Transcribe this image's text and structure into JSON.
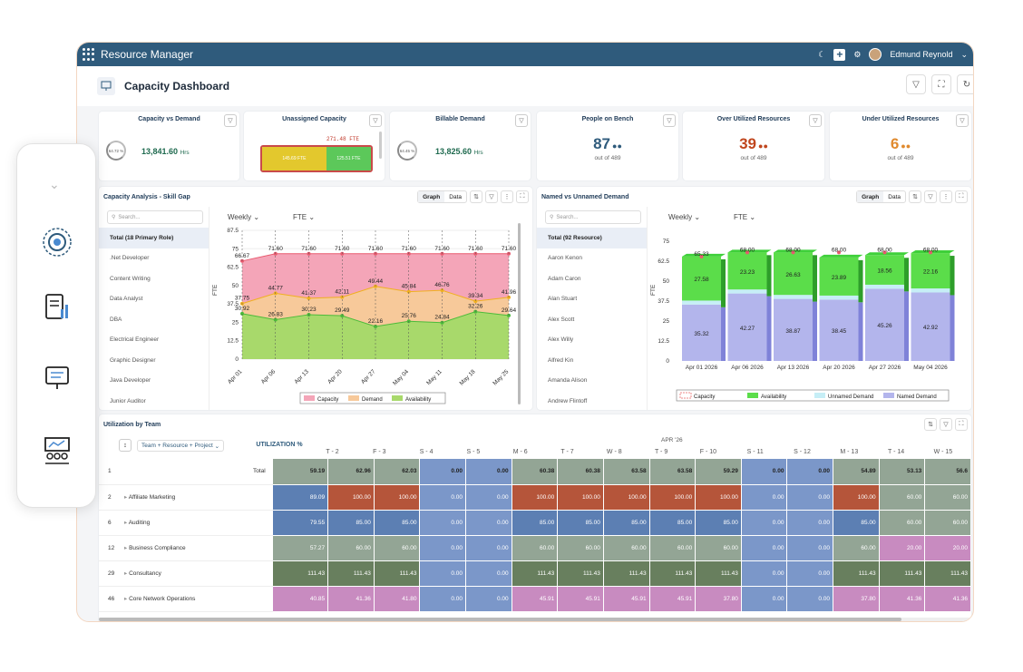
{
  "app": {
    "title": "Resource Manager",
    "user": "Edmund Reynold"
  },
  "page": {
    "title": "Capacity Dashboard"
  },
  "cards": [
    {
      "title": "Capacity vs Demand",
      "ring": "64.72 %",
      "value": "13,841.60",
      "unit": "Hrs"
    },
    {
      "title": "Unassigned Capacity",
      "total": "271.48 FTE",
      "seg1": "145.69 FTE",
      "seg2": "125.51 FTE"
    },
    {
      "title": "Billable Demand",
      "ring": "64.45 %",
      "value": "13,825.60",
      "unit": "Hrs"
    },
    {
      "title": "People on Bench",
      "value": "87",
      "sub": "out of 489"
    },
    {
      "title": "Over Utilized Resources",
      "value": "39",
      "sub": "out of 489"
    },
    {
      "title": "Under Utilized Resources",
      "value": "6",
      "sub": "out of 489"
    }
  ],
  "colors": {
    "topbar": "#2f5b7c",
    "capacity": "#f4a5b8",
    "demand": "#f7c99a",
    "availability": "#a8d96b",
    "named": "#b3b5ec",
    "unnamed": "#c6eef6",
    "avail_bar": "#5bdd4a"
  },
  "left_panel": {
    "title": "Capacity Analysis - Skill Gap",
    "graph_tab": "Graph",
    "data_tab": "Data",
    "search_placeholder": "Search...",
    "period": "Weekly",
    "unit": "FTE",
    "items": [
      "Total (18 Primary Role)",
      ".Net Developer",
      "Content Writing",
      "Data Analyst",
      "DBA",
      "Electrical Engineer",
      "Graphic Designer",
      "Java Developer",
      "Junior Auditor"
    ]
  },
  "right_panel": {
    "title": "Named vs Unnamed Demand",
    "graph_tab": "Graph",
    "data_tab": "Data",
    "search_placeholder": "Search...",
    "period": "Weekly",
    "unit": "FTE",
    "items": [
      "Total (92 Resource)",
      "Aaron Kenon",
      "Adam Caron",
      "Alan Stuart",
      "Alex Scott",
      "Alex Willy",
      "Alfred Kin",
      "Amanda Alison",
      "Andrew Flintoff"
    ]
  },
  "chart_data": [
    {
      "type": "area",
      "ylabel": "FTE",
      "ylim": [
        0,
        87.5
      ],
      "yticks": [
        "87.5",
        "75",
        "62.5",
        "50",
        "37.5",
        "25",
        "12.5",
        "0"
      ],
      "categories": [
        "Apr 01",
        "Apr 06",
        "Apr 13",
        "Apr 20",
        "Apr 27",
        "May 04",
        "May 11",
        "May 18",
        "May 25"
      ],
      "series": [
        {
          "name": "Capacity",
          "values": [
            66.67,
            71.6,
            71.6,
            71.6,
            71.6,
            71.6,
            71.6,
            71.6,
            71.6
          ]
        },
        {
          "name": "Demand",
          "values": [
            37.75,
            44.77,
            41.37,
            42.11,
            49.44,
            45.84,
            46.76,
            39.34,
            41.96
          ]
        },
        {
          "name": "Availability",
          "values": [
            30.92,
            26.83,
            30.23,
            29.49,
            22.16,
            25.76,
            24.84,
            32.26,
            29.64
          ]
        }
      ],
      "legend": "bottom"
    },
    {
      "type": "bar",
      "ylabel": "FTE",
      "ylim": [
        0,
        75
      ],
      "yticks": [
        "75",
        "62.5",
        "50",
        "37.5",
        "25",
        "12.5",
        "0"
      ],
      "categories": [
        "Apr 01 2026",
        "Apr 06 2026",
        "Apr 13 2026",
        "Apr 20 2026",
        "Apr 27 2026",
        "May 04 2026"
      ],
      "series": [
        {
          "name": "Named Demand",
          "values": [
            35.32,
            42.27,
            38.87,
            38.45,
            45.26,
            42.92
          ]
        },
        {
          "name": "Unnamed Demand",
          "values": [
            2.49,
            2.5,
            2.5,
            2.5,
            2.5,
            2.5
          ]
        },
        {
          "name": "Availability",
          "values": [
            27.58,
            23.23,
            26.63,
            23.89,
            18.56,
            22.16
          ]
        },
        {
          "name": "Capacity",
          "values": [
            65.33,
            68.0,
            68.0,
            68.0,
            68.0,
            68.0
          ]
        }
      ],
      "legend": "bottom"
    }
  ],
  "grid": {
    "title": "Utilization by Team",
    "group_label": "Team + Resource + Project",
    "util_header": "UTILIZATION %",
    "month": "APR '26",
    "days": [
      "T - 2",
      "F - 3",
      "S - 4",
      "S - 5",
      "M - 6",
      "T - 7",
      "W - 8",
      "T - 9",
      "F - 10",
      "S - 11",
      "S - 12",
      "M - 13",
      "T - 14",
      "W - 15"
    ],
    "rows": [
      {
        "num": "1",
        "label": "Total",
        "util": "59.19",
        "vals": [
          "62.96",
          "62.03",
          "0.00",
          "0.00",
          "60.38",
          "60.38",
          "63.58",
          "63.58",
          "59.29",
          "0.00",
          "0.00",
          "54.89",
          "53.13",
          "56.6"
        ]
      },
      {
        "num": "2",
        "label": "Affiliate Marketing",
        "util": "89.09",
        "vals": [
          "100.00",
          "100.00",
          "0.00",
          "0.00",
          "100.00",
          "100.00",
          "100.00",
          "100.00",
          "100.00",
          "0.00",
          "0.00",
          "100.00",
          "60.00",
          "60.00"
        ]
      },
      {
        "num": "6",
        "label": "Auditing",
        "util": "79.55",
        "vals": [
          "85.00",
          "85.00",
          "0.00",
          "0.00",
          "85.00",
          "85.00",
          "85.00",
          "85.00",
          "85.00",
          "0.00",
          "0.00",
          "85.00",
          "60.00",
          "60.00"
        ]
      },
      {
        "num": "12",
        "label": "Business Compliance",
        "util": "57.27",
        "vals": [
          "60.00",
          "60.00",
          "0.00",
          "0.00",
          "60.00",
          "60.00",
          "60.00",
          "60.00",
          "60.00",
          "0.00",
          "0.00",
          "60.00",
          "20.00",
          "20.00"
        ]
      },
      {
        "num": "29",
        "label": "Consultancy",
        "util": "111.43",
        "vals": [
          "111.43",
          "111.43",
          "0.00",
          "0.00",
          "111.43",
          "111.43",
          "111.43",
          "111.43",
          "111.43",
          "0.00",
          "0.00",
          "111.43",
          "111.43",
          "111.43"
        ]
      },
      {
        "num": "46",
        "label": "Core Network Operations",
        "util": "40.85",
        "vals": [
          "41.36",
          "41.80",
          "0.00",
          "0.00",
          "45.91",
          "45.91",
          "45.91",
          "45.91",
          "37.80",
          "0.00",
          "0.00",
          "37.80",
          "41.36",
          "41.36"
        ]
      }
    ]
  }
}
